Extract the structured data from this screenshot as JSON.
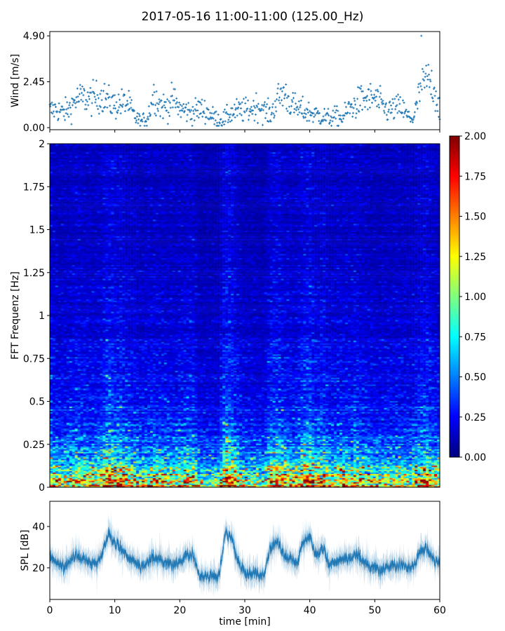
{
  "title": "2017-05-16 11:00-11:00 (125.00_Hz)",
  "chart_data": [
    {
      "type": "scatter",
      "panel": "wind",
      "ylabel": "Wind [m/s]",
      "ylim": [
        -0.11,
        5.13
      ],
      "xlim": [
        0,
        60
      ],
      "yticks": [
        "0.00",
        "2.45",
        "4.90"
      ],
      "marker": "+",
      "color": "#1f77b4",
      "x_minutes": [
        0,
        1,
        2,
        3,
        4,
        5,
        6,
        7,
        8,
        9,
        10,
        11,
        12,
        13,
        14,
        15,
        16,
        17,
        18,
        19,
        20,
        21,
        22,
        23,
        24,
        25,
        26,
        27,
        28,
        29,
        30,
        31,
        32,
        33,
        34,
        35,
        36,
        37,
        38,
        39,
        40,
        41,
        42,
        43,
        44,
        45,
        46,
        47,
        48,
        49,
        50,
        51,
        52,
        53,
        54,
        55,
        56,
        57,
        58,
        59,
        60
      ],
      "y_trend": [
        0.9,
        1.0,
        0.8,
        1.0,
        1.5,
        1.6,
        1.5,
        1.6,
        1.7,
        1.4,
        1.2,
        1.3,
        1.3,
        0.6,
        0.3,
        0.5,
        1.8,
        1.2,
        1.1,
        1.5,
        1.0,
        0.9,
        0.8,
        1.0,
        0.9,
        0.6,
        0.4,
        0.5,
        0.8,
        0.9,
        0.9,
        1.0,
        1.2,
        0.9,
        0.7,
        1.5,
        1.9,
        1.3,
        1.0,
        0.9,
        0.8,
        0.7,
        0.6,
        0.5,
        0.6,
        0.5,
        1.0,
        1.2,
        1.5,
        1.5,
        1.6,
        1.2,
        0.9,
        1.0,
        1.1,
        0.6,
        0.5,
        2.0,
        2.6,
        2.2,
        1.0
      ],
      "y_max": 4.9
    },
    {
      "type": "heatmap",
      "panel": "spectrogram",
      "ylabel": "FFT Frequenz [Hz]",
      "ylim": [
        0,
        2
      ],
      "xlim": [
        0,
        60
      ],
      "yticks": [
        "0",
        "0.25",
        "0.5",
        "0.75",
        "1",
        "1.25",
        "1.5",
        "1.75",
        "2"
      ],
      "colormap": "jet",
      "colorbar": {
        "range": [
          0,
          2
        ],
        "ticks": [
          "0.00",
          "0.25",
          "0.50",
          "0.75",
          "1.00",
          "1.25",
          "1.50",
          "1.75",
          "2.00"
        ]
      }
    },
    {
      "type": "line",
      "panel": "spl",
      "ylabel": "SPL [dB]",
      "xlabel": "time [min]",
      "ylim": [
        4.7,
        52.2
      ],
      "xlim": [
        0,
        60
      ],
      "yticks": [
        "20",
        "40"
      ],
      "xticks": [
        "0",
        "10",
        "20",
        "30",
        "40",
        "50",
        "60"
      ],
      "color": "#1f77b4",
      "x_minutes": [
        0,
        1,
        2,
        3,
        4,
        5,
        6,
        7,
        8,
        9,
        10,
        11,
        12,
        13,
        14,
        15,
        16,
        17,
        18,
        19,
        20,
        21,
        22,
        23,
        24,
        25,
        26,
        27,
        28,
        29,
        30,
        31,
        32,
        33,
        34,
        35,
        36,
        37,
        38,
        39,
        40,
        41,
        42,
        43,
        44,
        45,
        46,
        47,
        48,
        49,
        50,
        51,
        52,
        53,
        54,
        55,
        56,
        57,
        58,
        59,
        60
      ],
      "y_trend": [
        26,
        22,
        20,
        23,
        26,
        25,
        23,
        22,
        26,
        37,
        32,
        30,
        25,
        24,
        20,
        23,
        25,
        24,
        22,
        22,
        23,
        26,
        27,
        16,
        16,
        16,
        16,
        37,
        35,
        22,
        18,
        18,
        17,
        16,
        30,
        33,
        26,
        25,
        22,
        33,
        35,
        26,
        30,
        22,
        23,
        25,
        24,
        27,
        24,
        21,
        20,
        19,
        21,
        21,
        22,
        20,
        21,
        28,
        30,
        24,
        23
      ]
    }
  ]
}
